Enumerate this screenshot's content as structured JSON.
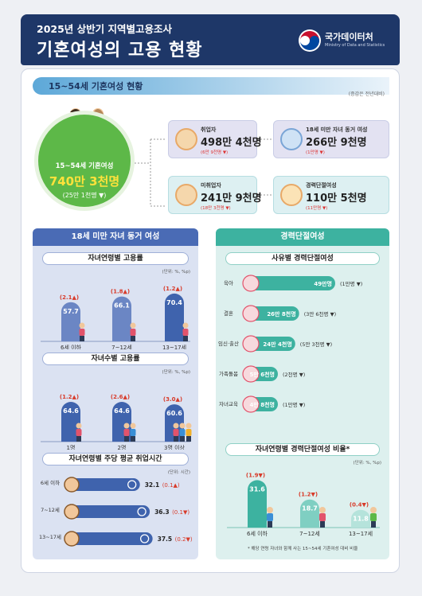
{
  "header": {
    "subtitle": "2025년 상반기 지역별고용조사",
    "title": "기혼여성의 고용 현황",
    "logo_text": "국가데이터처",
    "logo_sub": "Ministry of Data and Statistics"
  },
  "section1": {
    "title": "15~54세 기혼여성 현황",
    "note": "(증감은 전년대비)"
  },
  "total": {
    "label": "15~54세 기혼여성",
    "value": "740만 3천명",
    "change": "(25만 1천명 ▼)"
  },
  "boxes": [
    {
      "label": "취업자",
      "value": "498만 4천명",
      "change": "(6만 9천명 ▼)"
    },
    {
      "label": "18세 미만 자녀 동거 여성",
      "value": "266만 9천명",
      "change": "(1만명 ▼)"
    },
    {
      "label": "미취업자",
      "value": "241만 9천명",
      "change": "(18만 3천명 ▼)"
    },
    {
      "label": "경력단절여성",
      "value": "110만 5천명",
      "change": "(11만명 ▼)"
    }
  ],
  "left_panel": {
    "title": "18세 미만 자녀 동거 여성",
    "age_chart": {
      "title": "자녀연령별 고용률",
      "unit": "(단위: %, %p)",
      "values": [
        "57.7",
        "66.1",
        "70.4"
      ],
      "changes": [
        "(2.1▲)",
        "(1.8▲)",
        "(1.2▲)"
      ],
      "cats": [
        "6세 이하",
        "7~12세",
        "13~17세"
      ]
    },
    "count_chart": {
      "title": "자녀수별 고용률",
      "unit": "(단위: %, %p)",
      "values": [
        "64.6",
        "64.6",
        "60.6"
      ],
      "changes": [
        "(1.2▲)",
        "(2.6▲)",
        "(3.0▲)"
      ],
      "cats": [
        "1명",
        "2명",
        "3명 이상"
      ]
    },
    "hours_chart": {
      "title": "자녀연령별 주당 평균 취업시간",
      "unit": "(단위: 시간)",
      "cats": [
        "6세 이하",
        "7~12세",
        "13~17세"
      ],
      "values": [
        "32.1",
        "36.3",
        "37.5"
      ],
      "changes": [
        "(0.1▲)",
        "(0.1▼)",
        "(0.2▼)"
      ]
    }
  },
  "right_panel": {
    "title": "경력단절여성",
    "reason_chart": {
      "title": "사유별 경력단절여성",
      "cats": [
        "육아",
        "결혼",
        "임신·출산",
        "가족돌봄",
        "자녀교육"
      ],
      "values": [
        "49만명",
        "26만 8천명",
        "24만 4천명",
        "5만 6천명",
        "4만 8천명"
      ],
      "changes": [
        "(1만명 ▼)",
        "(3만 6천명 ▼)",
        "(5만 3천명 ▼)",
        "(2천명 ▼)",
        "(1만명 ▼)"
      ]
    },
    "ratio_chart": {
      "title": "자녀연령별 경력단절여성 비율*",
      "unit": "(단위: %, %p)",
      "values": [
        "31.6",
        "18.7",
        "11.8"
      ],
      "changes": [
        "(1.9▼)",
        "(1.2▼)",
        "(0.4▼)"
      ],
      "cats": [
        "6세 이하",
        "7~12세",
        "13~17세"
      ],
      "footnote": "* 해당 연령 자녀와 함께 사는 15~54세 기혼여성 대비 비율"
    }
  },
  "colors": {
    "navy": "#1e3768",
    "green": "#5db848",
    "teal": "#3db2a0",
    "blue_bar": "#6b86c4",
    "dark_blue_bar": "#3f63ad",
    "orange": "#e58a2f",
    "red": "#d83b2a"
  },
  "chart_data": [
    {
      "type": "bar",
      "title": "자녀연령별 고용률",
      "categories": [
        "6세 이하",
        "7~12세",
        "13~17세"
      ],
      "values": [
        57.7,
        66.1,
        70.4
      ]
    },
    {
      "type": "bar",
      "title": "자녀수별 고용률",
      "categories": [
        "1명",
        "2명",
        "3명 이상"
      ],
      "values": [
        64.6,
        64.6,
        60.6
      ]
    },
    {
      "type": "bar",
      "title": "자녀연령별 주당 평균 취업시간",
      "categories": [
        "6세 이하",
        "7~12세",
        "13~17세"
      ],
      "values": [
        32.1,
        36.3,
        37.5
      ]
    },
    {
      "type": "bar",
      "title": "사유별 경력단절여성",
      "categories": [
        "육아",
        "결혼",
        "임신·출산",
        "가족돌봄",
        "자녀교육"
      ],
      "values": [
        49.0,
        26.8,
        24.4,
        5.6,
        4.8
      ]
    },
    {
      "type": "bar",
      "title": "자녀연령별 경력단절여성 비율*",
      "categories": [
        "6세 이하",
        "7~12세",
        "13~17세"
      ],
      "values": [
        31.6,
        18.7,
        11.8
      ]
    }
  ]
}
